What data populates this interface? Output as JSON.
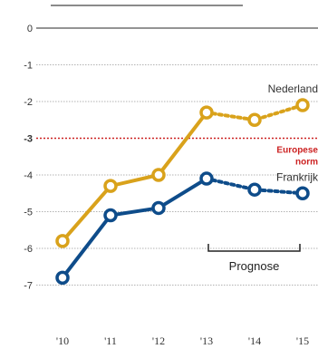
{
  "chart_data": {
    "type": "line",
    "x": [
      "'10",
      "'11",
      "'12",
      "'13",
      "'14",
      "'15"
    ],
    "ylim": [
      -7.3,
      0.2
    ],
    "yticks": [
      {
        "value": 0,
        "label": "0"
      },
      {
        "value": -1,
        "label": "-1"
      },
      {
        "value": -2,
        "label": "-2"
      },
      {
        "value": -3,
        "label": "-3"
      },
      {
        "value": -4,
        "label": "-4"
      },
      {
        "value": -5,
        "label": "-5"
      },
      {
        "value": -6,
        "label": "-6"
      },
      {
        "value": -7,
        "label": "-7"
      }
    ],
    "grid": true,
    "series": [
      {
        "name": "Nederland",
        "color": "#d9a21b",
        "values": [
          -5.8,
          -4.3,
          -4.0,
          -2.3,
          -2.5,
          -2.1
        ],
        "forecast_from_index": 3
      },
      {
        "name": "Frankrijk",
        "color": "#0e4c8a",
        "values": [
          -6.8,
          -5.1,
          -4.9,
          -4.1,
          -4.4,
          -4.5
        ],
        "forecast_from_index": 3
      }
    ],
    "reference_line": {
      "value": -3,
      "label_lines": [
        "Europese",
        "norm"
      ],
      "color": "#cc2222"
    },
    "annotation": {
      "label": "Prognose",
      "from_index": 3,
      "to_index": 5
    }
  }
}
